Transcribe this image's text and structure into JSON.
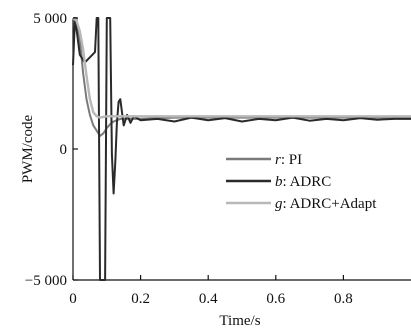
{
  "chart_data": {
    "type": "line",
    "title": "",
    "xlabel": "Time/s",
    "ylabel": "PWM/code",
    "xlim": [
      0,
      1.0
    ],
    "ylim": [
      -5000,
      5000
    ],
    "x_ticks": [
      0,
      0.2,
      0.4,
      0.6,
      0.8
    ],
    "x_tick_labels": [
      "0",
      "0.2",
      "0.4",
      "0.6",
      "0.8"
    ],
    "y_ticks": [
      5000,
      0,
      -5000
    ],
    "y_tick_labels": [
      "5 000",
      "0",
      "−5 000"
    ],
    "grid": false,
    "legend_position": "right",
    "series": [
      {
        "name": "PI",
        "symbol": "r",
        "color": "#7a7a7a",
        "x": [
          0.0,
          0.01,
          0.02,
          0.03,
          0.04,
          0.05,
          0.06,
          0.07,
          0.08,
          0.09,
          0.1,
          0.11,
          0.12,
          0.13,
          0.14,
          0.16,
          0.2,
          0.3,
          0.4,
          0.5,
          0.6,
          0.7,
          0.8,
          0.9,
          1.0
        ],
        "values": [
          5000,
          5000,
          4200,
          2900,
          1900,
          1300,
          900,
          700,
          500,
          600,
          800,
          950,
          1050,
          1100,
          1150,
          1150,
          1150,
          1200,
          1200,
          1200,
          1200,
          1200,
          1200,
          1200,
          1200
        ]
      },
      {
        "name": "ADRC",
        "symbol": "b",
        "color": "#2a2a2a",
        "x": [
          0.0,
          0.006,
          0.012,
          0.02,
          0.035,
          0.05,
          0.065,
          0.07,
          0.075,
          0.08,
          0.085,
          0.09,
          0.095,
          0.1,
          0.105,
          0.11,
          0.115,
          0.12,
          0.125,
          0.13,
          0.135,
          0.14,
          0.145,
          0.15,
          0.16,
          0.17,
          0.18,
          0.2,
          0.25,
          0.3,
          0.35,
          0.4,
          0.45,
          0.5,
          0.55,
          0.6,
          0.65,
          0.7,
          0.75,
          0.8,
          0.85,
          0.9,
          0.95,
          1.0
        ],
        "values": [
          3200,
          5000,
          4400,
          3600,
          3300,
          3500,
          3700,
          5000,
          5000,
          -5000,
          -5000,
          -5000,
          -5000,
          5000,
          5000,
          5000,
          -200,
          -1700,
          -500,
          1000,
          1800,
          1900,
          1400,
          900,
          1300,
          1000,
          1250,
          1100,
          1150,
          1050,
          1200,
          1100,
          1180,
          1050,
          1150,
          1100,
          1200,
          1080,
          1150,
          1100,
          1180,
          1120,
          1150,
          1150
        ]
      },
      {
        "name": "ADRC+Adapt",
        "symbol": "g",
        "color": "#b8b8b8",
        "x": [
          0.0,
          0.01,
          0.02,
          0.03,
          0.04,
          0.05,
          0.06,
          0.07,
          0.08,
          0.1,
          0.15,
          0.2,
          0.3,
          0.4,
          0.5,
          0.6,
          0.7,
          0.8,
          0.9,
          1.0
        ],
        "values": [
          5000,
          4900,
          4500,
          3800,
          2800,
          1900,
          1400,
          1250,
          1200,
          1250,
          1250,
          1250,
          1250,
          1250,
          1250,
          1250,
          1250,
          1250,
          1250,
          1250
        ]
      }
    ]
  }
}
